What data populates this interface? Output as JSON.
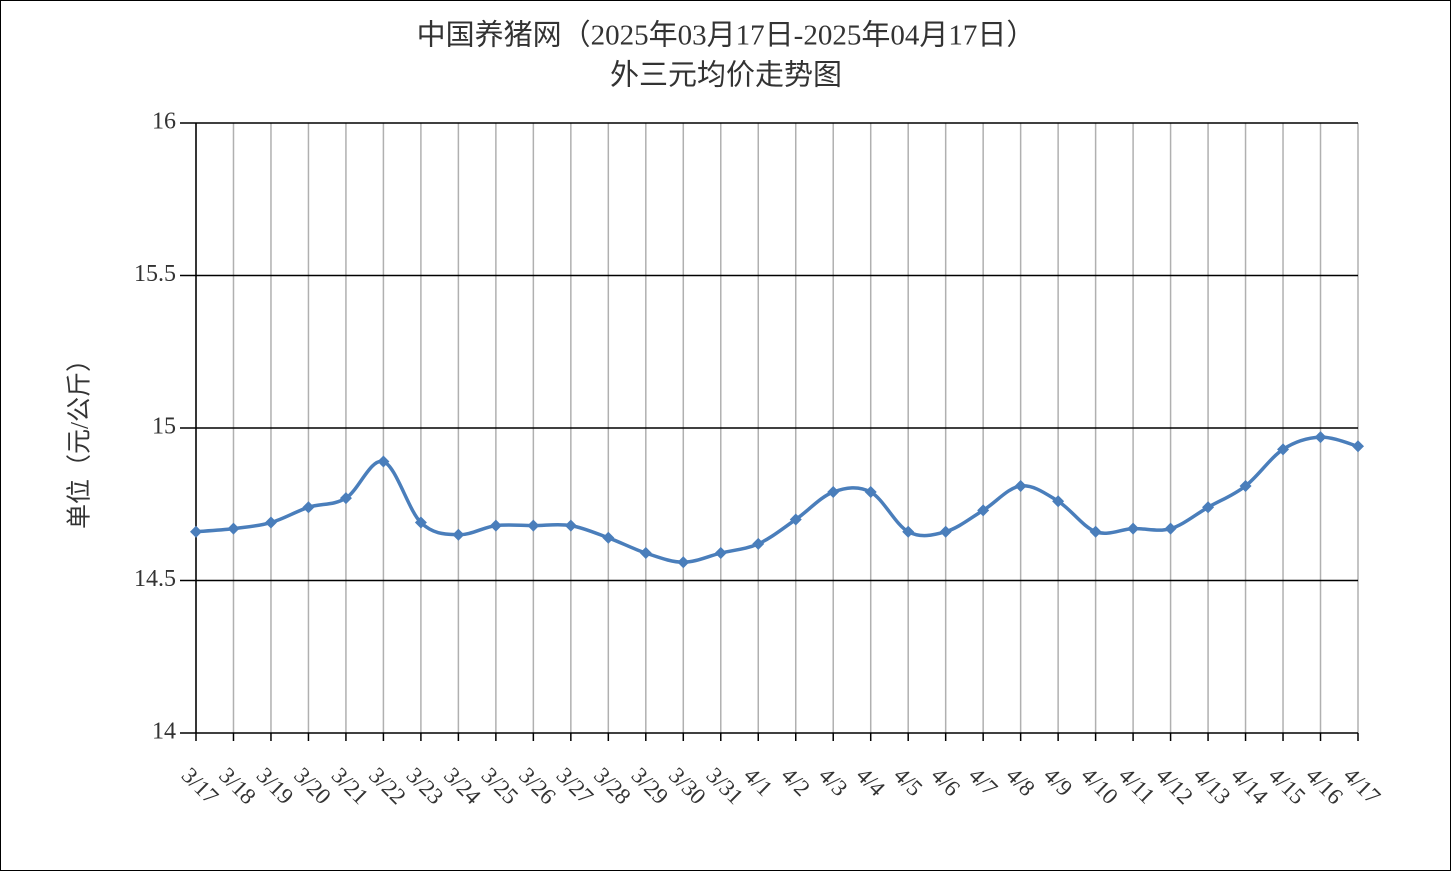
{
  "chart_data": {
    "type": "line",
    "title": "中国养猪网（2025年03月17日-2025年04月17日）",
    "subtitle": "外三元均价走势图",
    "y_label": "单位（元/公斤）",
    "categories": [
      "3/17",
      "3/18",
      "3/19",
      "3/20",
      "3/21",
      "3/22",
      "3/23",
      "3/24",
      "3/25",
      "3/26",
      "3/27",
      "3/28",
      "3/29",
      "3/30",
      "3/31",
      "4/1",
      "4/2",
      "4/3",
      "4/4",
      "4/5",
      "4/6",
      "4/7",
      "4/8",
      "4/9",
      "4/10",
      "4/11",
      "4/12",
      "4/13",
      "4/14",
      "4/15",
      "4/16",
      "4/17"
    ],
    "values": [
      14.66,
      14.67,
      14.69,
      14.74,
      14.77,
      14.89,
      14.69,
      14.65,
      14.68,
      14.68,
      14.68,
      14.64,
      14.59,
      14.56,
      14.59,
      14.62,
      14.7,
      14.79,
      14.79,
      14.66,
      14.66,
      14.73,
      14.81,
      14.76,
      14.66,
      14.67,
      14.67,
      14.74,
      14.81,
      14.93,
      14.97,
      14.94
    ],
    "color": "#4a7ebb",
    "smooth": true,
    "ylim": [
      14,
      16
    ],
    "yticks": [
      14,
      14.5,
      15,
      15.5,
      16
    ],
    "grid": true
  }
}
